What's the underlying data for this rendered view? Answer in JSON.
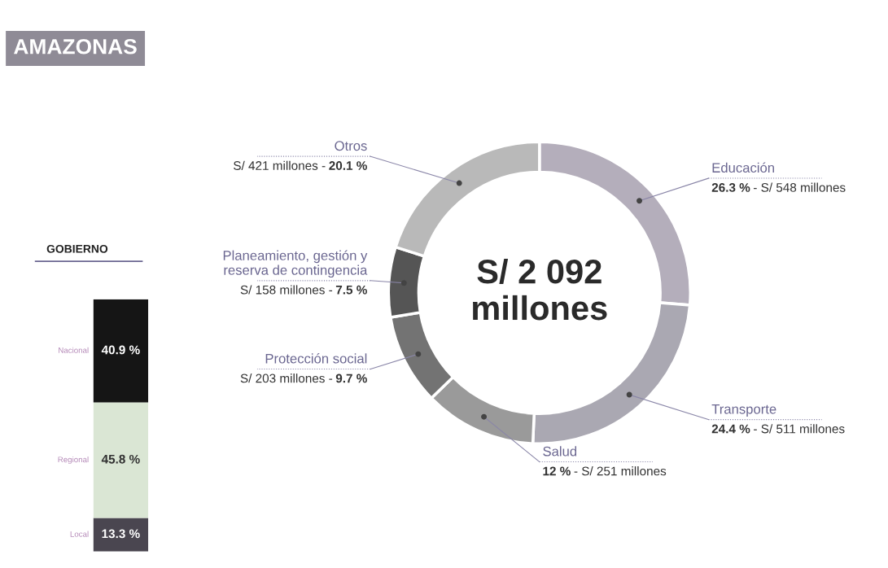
{
  "chart_data": [
    {
      "type": "donut",
      "title": "AMAZONAS",
      "categories": [
        "Educación",
        "Transporte",
        "Salud",
        "Protección social",
        "Planeamiento, gestión y reserva de contingencia",
        "Otros"
      ],
      "values": [
        26.3,
        24.4,
        12,
        9.7,
        7.5,
        20.1
      ],
      "value_labels": [
        "26.3 %",
        "24.4 %",
        "12 %",
        "9.7 %",
        "7.5 %",
        "20.1 %"
      ],
      "colors": [
        "#b4aebb",
        "#aaa8b2",
        "#9a9a9a",
        "#737373",
        "#555555",
        "#b9b9b9"
      ],
      "annotations": [
        "S/ 2 092\nmillones",
        {
          "text": "- S/ 548 millones",
          "x": "Educación"
        },
        {
          "text": "- S/ 511 millones",
          "x": "Transporte"
        },
        {
          "text": "- S/ 251 millones",
          "x": "Salud"
        },
        {
          "text": "S/ 203 millones -",
          "x": "Protección social"
        },
        {
          "text": "S/ 158 millones -",
          "x": "Planeamiento, gestión y reserva de contingencia"
        },
        {
          "text": "S/ 421 millones -",
          "x": "Otros"
        }
      ]
    },
    {
      "type": "bar",
      "title": "GOBIERNO",
      "stacked": true,
      "categories": [
        null
      ],
      "series": [
        {
          "name": "Local",
          "color": "#4a4650",
          "values": [
            13.3
          ],
          "value_labels": [
            "13.3 %"
          ]
        },
        {
          "name": "Regional",
          "color": "#dae6d4",
          "values": [
            45.8
          ],
          "value_labels": [
            "45.8 %"
          ]
        },
        {
          "name": "Nacional",
          "color": "#151515",
          "values": [
            40.9
          ],
          "value_labels": [
            "40.9 %"
          ]
        }
      ]
    }
  ]
}
